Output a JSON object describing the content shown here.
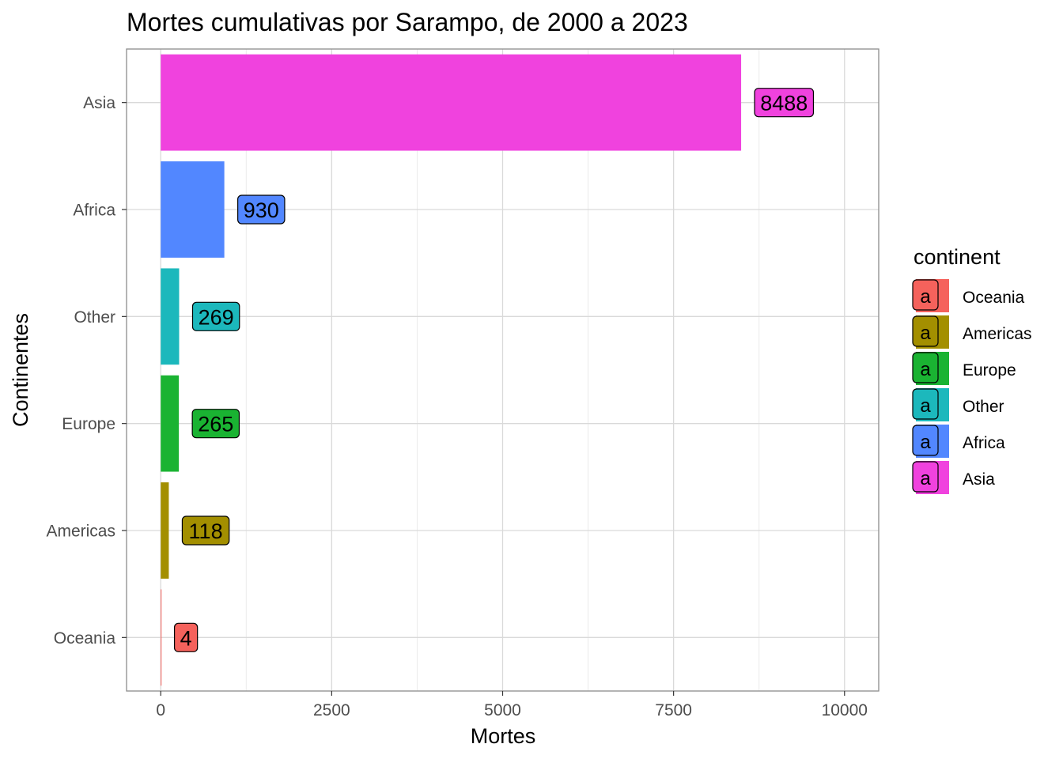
{
  "chart_data": {
    "type": "bar",
    "orientation": "horizontal",
    "title": "Mortes cumulativas por Sarampo, de 2000 a 2023",
    "xlabel": "Mortes",
    "ylabel": "Continentes",
    "categories": [
      "Asia",
      "Africa",
      "Other",
      "Europe",
      "Americas",
      "Oceania"
    ],
    "values": [
      8488,
      930,
      269,
      265,
      118,
      4
    ],
    "colors": [
      "#F042DE",
      "#5287FF",
      "#1CB8BC",
      "#1AB332",
      "#A38F00",
      "#F5625C"
    ],
    "xlim": [
      -500,
      10500
    ],
    "x_ticks": [
      0,
      2500,
      5000,
      7500,
      10000
    ],
    "x_tick_labels": [
      "0",
      "2500",
      "5000",
      "7500",
      "10000"
    ],
    "grid": true,
    "legend": {
      "title": "continent",
      "placement": "right",
      "key_glyph": "a",
      "items": [
        {
          "label": "Oceania",
          "color": "#F5625C"
        },
        {
          "label": "Americas",
          "color": "#A38F00"
        },
        {
          "label": "Europe",
          "color": "#1AB332"
        },
        {
          "label": "Other",
          "color": "#1CB8BC"
        },
        {
          "label": "Africa",
          "color": "#5287FF"
        },
        {
          "label": "Asia",
          "color": "#F042DE"
        }
      ]
    }
  }
}
